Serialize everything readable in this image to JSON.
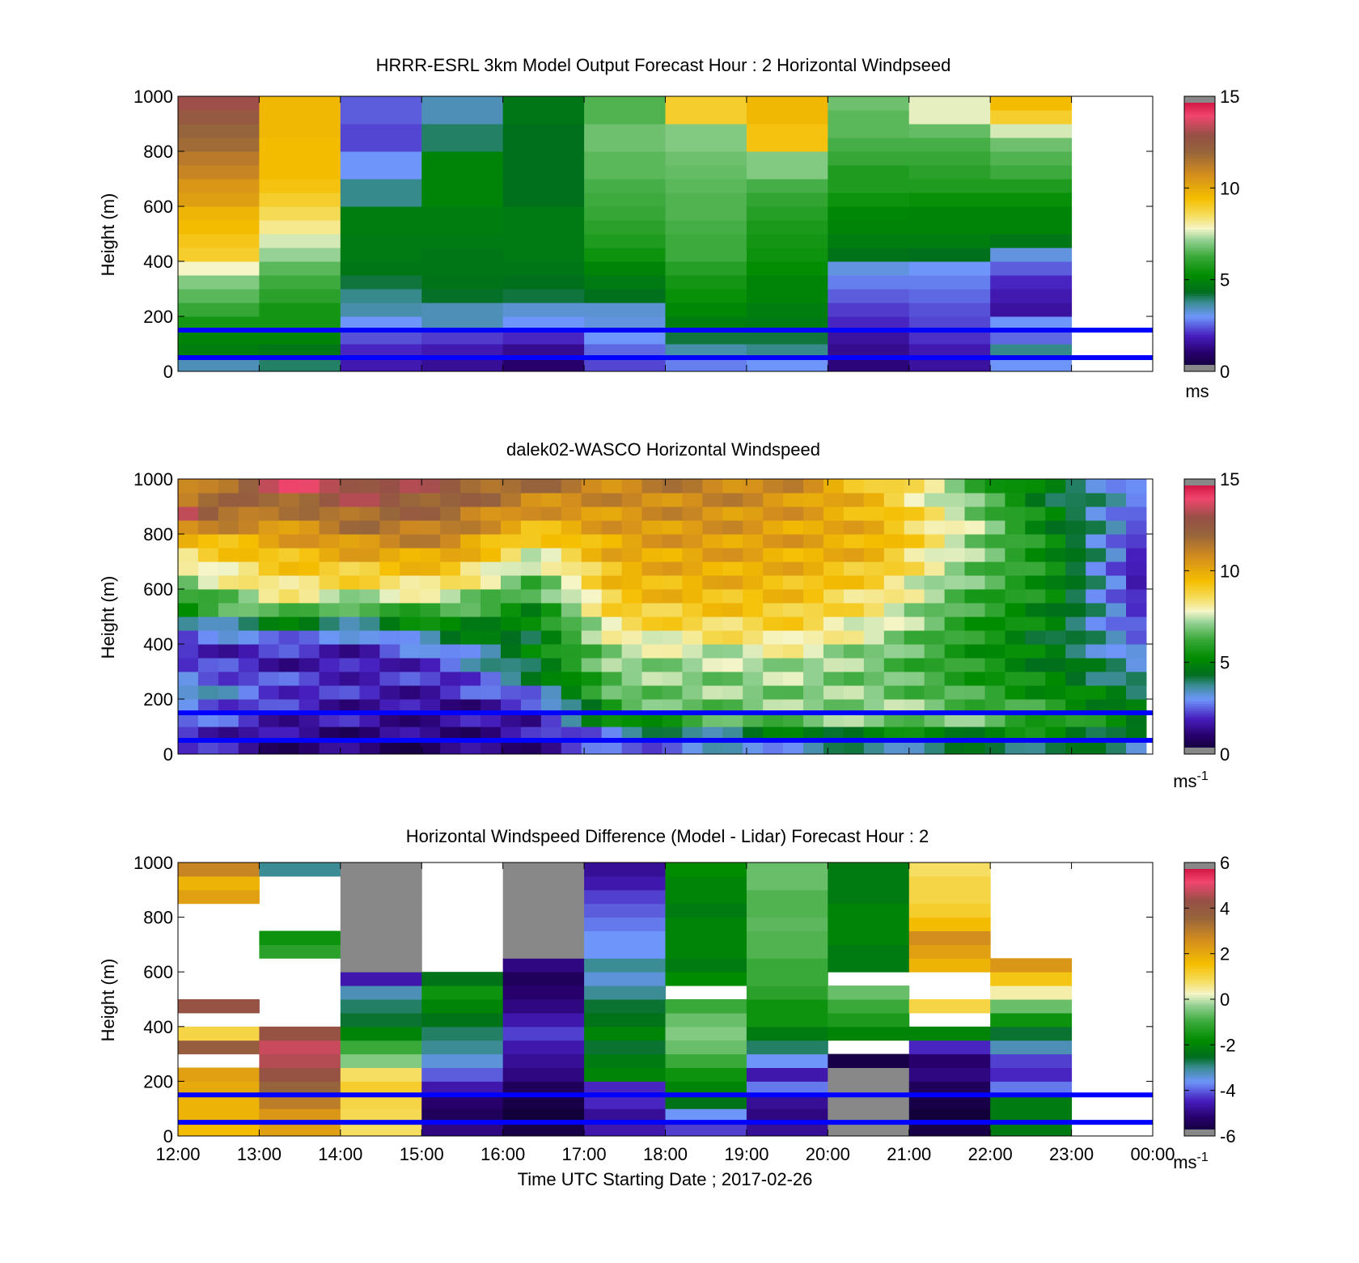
{
  "figure": {
    "xlabel": "Time UTC  Starting Date ; 2017-02-26",
    "time_ticks": [
      "12:00",
      "13:00",
      "14:00",
      "15:00",
      "16:00",
      "17:00",
      "18:00",
      "19:00",
      "20:00",
      "21:00",
      "22:00",
      "23:00",
      "00:00"
    ],
    "reference_heights_m": [
      50,
      150
    ],
    "reference_line_color": "#0000ff"
  },
  "chart_data": [
    {
      "type": "heatmap",
      "title": "HRRR-ESRL 3km Model Output   Forecast Hour : 2 Horizontal Windpseed",
      "ylabel": "Height (m)",
      "ylim": [
        0,
        1000
      ],
      "yticks": [
        0,
        200,
        400,
        600,
        800,
        1000
      ],
      "xticks": [
        "12:00",
        "13:00",
        "14:00",
        "15:00",
        "16:00",
        "17:00",
        "18:00",
        "19:00",
        "20:00",
        "21:00",
        "22:00",
        "23:00",
        "00:00"
      ],
      "colorbar": {
        "range": [
          0,
          15
        ],
        "ticks": [
          0,
          5,
          10,
          15
        ],
        "unit": "ms",
        "unit_sup": ""
      },
      "resolution": "hourly",
      "heights_m": [
        0,
        50,
        100,
        150,
        200,
        250,
        300,
        350,
        400,
        450,
        500,
        550,
        600,
        650,
        700,
        750,
        800,
        850,
        900,
        950
      ],
      "series": [
        {
          "time": "12:00",
          "values": [
            3.5,
            4.8,
            5.0,
            5.6,
            6.2,
            6.6,
            7.0,
            7.8,
            9.0,
            9.2,
            9.5,
            9.7,
            10.3,
            10.5,
            11.0,
            11.3,
            11.8,
            12.0,
            12.5,
            13.0
          ]
        },
        {
          "time": "13:00",
          "values": [
            4.0,
            4.6,
            5.0,
            5.6,
            5.6,
            6.0,
            6.3,
            6.6,
            7.2,
            7.6,
            8.2,
            8.6,
            9.0,
            9.3,
            9.5,
            9.5,
            9.5,
            9.6,
            9.6,
            9.6
          ]
        },
        {
          "time": "14:00",
          "values": [
            1.8,
            2.0,
            2.4,
            3.0,
            3.6,
            3.8,
            4.2,
            4.6,
            4.7,
            4.7,
            4.8,
            4.8,
            3.8,
            3.8,
            3.0,
            3.0,
            2.3,
            2.3,
            2.5,
            2.5
          ]
        },
        {
          "time": "15:00",
          "values": [
            1.5,
            1.8,
            2.2,
            3.5,
            3.5,
            4.3,
            4.5,
            4.6,
            4.6,
            4.7,
            4.8,
            4.8,
            5.0,
            5.0,
            5.0,
            5.0,
            4.0,
            4.0,
            3.5,
            3.5
          ]
        },
        {
          "time": "16:00",
          "values": [
            1.0,
            1.4,
            2.0,
            3.0,
            3.3,
            4.2,
            4.4,
            4.6,
            4.7,
            4.7,
            4.7,
            4.7,
            4.4,
            4.4,
            4.4,
            4.4,
            4.4,
            4.4,
            4.6,
            4.6
          ]
        },
        {
          "time": "17:00",
          "values": [
            2.3,
            2.6,
            3.0,
            3.2,
            3.3,
            4.4,
            4.7,
            5.0,
            5.5,
            5.8,
            6.0,
            6.2,
            6.3,
            6.4,
            6.6,
            6.6,
            6.8,
            6.8,
            6.5,
            6.5
          ]
        },
        {
          "time": "18:00",
          "values": [
            2.8,
            3.6,
            4.2,
            4.8,
            5.1,
            5.4,
            5.6,
            5.9,
            6.3,
            6.3,
            6.4,
            6.5,
            6.5,
            6.6,
            6.7,
            6.8,
            7.0,
            7.0,
            9.0,
            9.0
          ]
        },
        {
          "time": "19:00",
          "values": [
            3.0,
            3.8,
            4.2,
            4.7,
            4.8,
            5.0,
            5.0,
            5.3,
            5.5,
            5.6,
            5.7,
            5.9,
            6.1,
            6.4,
            7.0,
            7.0,
            9.3,
            9.3,
            9.6,
            9.6
          ]
        },
        {
          "time": "20:00",
          "values": [
            1.2,
            1.4,
            1.6,
            2.0,
            2.2,
            2.5,
            2.8,
            3.2,
            4.5,
            4.8,
            5.0,
            5.1,
            5.5,
            5.8,
            5.8,
            6.2,
            6.4,
            6.6,
            6.6,
            6.8
          ]
        },
        {
          "time": "21:00",
          "values": [
            1.6,
            1.8,
            2.1,
            2.3,
            2.4,
            2.6,
            2.8,
            3.0,
            4.4,
            4.8,
            5.0,
            5.0,
            5.4,
            5.8,
            6.0,
            6.2,
            6.4,
            6.7,
            7.7,
            7.7
          ]
        },
        {
          "time": "22:00",
          "values": [
            3.0,
            3.8,
            2.6,
            3.0,
            1.6,
            1.8,
            2.0,
            2.5,
            3.2,
            4.6,
            5.0,
            5.0,
            5.4,
            5.8,
            6.3,
            6.5,
            6.8,
            7.6,
            9.0,
            9.5
          ]
        }
      ]
    },
    {
      "type": "heatmap",
      "title": "dalek02-WASCO  Horizontal Windspeed",
      "ylabel": "Height (m)",
      "ylim": [
        0,
        1000
      ],
      "yticks": [
        0,
        200,
        400,
        600,
        800,
        1000
      ],
      "xticks": [],
      "colorbar": {
        "range": [
          0,
          15
        ],
        "ticks": [
          0,
          5,
          10,
          15
        ],
        "unit": "ms",
        "unit_sup": "-1"
      },
      "resolution": "profile",
      "heights_m": [
        25,
        75,
        125,
        175,
        225,
        275,
        325,
        375,
        425,
        475,
        525,
        575,
        625,
        675,
        725,
        775,
        825,
        875,
        925,
        975
      ],
      "profiles": [
        [
          2.0,
          2.2,
          2.6,
          3.0,
          3.4,
          3.0,
          2.2,
          2.0,
          2.4,
          3.5,
          5.5,
          6.0,
          7.0,
          7.8,
          8.5,
          9.5,
          11.0,
          13.0,
          11.5,
          10.5
        ],
        [
          1.2,
          1.4,
          1.8,
          2.0,
          2.4,
          2.2,
          1.8,
          2.0,
          3.0,
          4.6,
          7.0,
          8.0,
          8.6,
          9.0,
          9.5,
          10.0,
          10.5,
          11.0,
          12.0,
          13.5
        ],
        [
          1.0,
          1.2,
          1.6,
          1.6,
          1.8,
          2.0,
          1.6,
          1.8,
          2.6,
          4.0,
          6.0,
          7.5,
          8.6,
          9.2,
          10.0,
          10.8,
          11.5,
          12.0,
          12.8,
          13.2
        ],
        [
          1.0,
          1.2,
          1.4,
          1.4,
          1.8,
          2.0,
          2.4,
          3.0,
          4.2,
          5.4,
          6.5,
          7.6,
          8.6,
          9.4,
          10.2,
          11.0,
          11.4,
          11.8,
          12.2,
          12.4
        ],
        [
          1.4,
          1.6,
          1.8,
          2.0,
          3.0,
          4.0,
          4.6,
          4.8,
          4.6,
          4.8,
          5.2,
          6.0,
          6.4,
          7.0,
          7.8,
          8.6,
          9.6,
          10.4,
          11.0,
          11.6
        ],
        [
          2.6,
          3.4,
          5.4,
          6.4,
          6.8,
          7.0,
          7.2,
          7.4,
          8.0,
          8.6,
          9.0,
          9.4,
          9.6,
          9.8,
          10.0,
          10.2,
          10.4,
          10.6,
          10.8,
          11.0
        ],
        [
          3.0,
          4.0,
          6.2,
          6.8,
          7.0,
          7.0,
          7.2,
          7.6,
          8.2,
          8.8,
          9.2,
          9.6,
          9.8,
          10.0,
          10.2,
          10.4,
          10.6,
          10.8,
          11.0,
          11.2
        ],
        [
          3.4,
          4.6,
          6.8,
          7.0,
          7.0,
          7.2,
          7.4,
          7.8,
          8.4,
          8.8,
          9.2,
          9.4,
          9.6,
          9.8,
          10.0,
          10.2,
          10.2,
          10.4,
          10.6,
          10.8
        ],
        [
          3.8,
          5.0,
          7.0,
          7.2,
          7.0,
          6.8,
          6.8,
          7.0,
          7.4,
          7.8,
          8.2,
          8.4,
          8.8,
          9.2,
          9.6,
          9.8,
          9.8,
          9.6,
          9.4,
          9.2
        ],
        [
          4.0,
          5.0,
          6.8,
          6.6,
          6.2,
          6.0,
          5.8,
          5.8,
          5.8,
          6.0,
          6.2,
          6.4,
          6.8,
          7.0,
          7.2,
          7.4,
          7.6,
          7.4,
          7.0,
          6.8
        ],
        [
          4.4,
          5.2,
          6.0,
          5.8,
          5.4,
          5.0,
          4.8,
          4.6,
          4.6,
          4.8,
          5.0,
          5.2,
          5.4,
          5.4,
          5.4,
          5.2,
          5.0,
          4.8,
          4.6,
          4.4
        ],
        [
          3.6,
          4.2,
          4.8,
          4.6,
          4.2,
          3.8,
          3.4,
          3.0,
          2.6,
          2.4,
          2.2,
          2.0,
          1.8,
          1.8,
          2.0,
          2.2,
          2.4,
          2.6,
          2.8,
          3.0
        ]
      ]
    },
    {
      "type": "heatmap",
      "title": "Horizontal Windspeed Difference (Model - Lidar) Forecast Hour : 2",
      "ylabel": "Height (m)",
      "ylim": [
        0,
        1000
      ],
      "yticks": [
        0,
        200,
        400,
        600,
        800,
        1000
      ],
      "xticks": [
        "12:00",
        "13:00",
        "14:00",
        "15:00",
        "16:00",
        "17:00",
        "18:00",
        "19:00",
        "20:00",
        "21:00",
        "22:00",
        "23:00",
        "00:00"
      ],
      "colorbar": {
        "range": [
          -6,
          6
        ],
        "ticks": [
          -6,
          -4,
          -2,
          0,
          2,
          4,
          6
        ],
        "unit": "ms",
        "unit_sup": "-1"
      },
      "resolution": "hourly",
      "heights_m": [
        0,
        50,
        100,
        150,
        200,
        250,
        300,
        350,
        400,
        450,
        500,
        550,
        600,
        650,
        700,
        750,
        800,
        850,
        900,
        950
      ],
      "series": [
        {
          "time": "12:00",
          "values": [
            1.6,
            1.8,
            1.8,
            2.0,
            2.2,
            null,
            3.8,
            1.0,
            null,
            4.2,
            null,
            null,
            null,
            null,
            null,
            null,
            null,
            2.2,
            1.8,
            2.8
          ]
        },
        {
          "time": "13:00",
          "values": [
            2.2,
            2.4,
            3.0,
            3.6,
            4.2,
            4.6,
            4.8,
            4.2,
            null,
            null,
            null,
            null,
            null,
            -1.2,
            -1.6,
            null,
            null,
            null,
            null,
            -3.0
          ]
        },
        {
          "time": "14:00",
          "values": [
            0.8,
            0.9,
            1.0,
            1.2,
            0.8,
            -0.4,
            -1.0,
            -2.0,
            -2.6,
            -2.8,
            -3.2,
            -4.6,
            -6.4,
            -6.4,
            -6.4,
            -6.4,
            -6.4,
            -6.4,
            -6.4,
            -6.4
          ]
        },
        {
          "time": "15:00",
          "values": [
            -5.0,
            -5.4,
            -5.2,
            -4.6,
            -4.0,
            -3.4,
            -3.0,
            -2.8,
            -2.4,
            -2.0,
            -1.6,
            -2.4,
            null,
            null,
            null,
            null,
            null,
            null,
            null,
            null
          ]
        },
        {
          "time": "16:00",
          "values": [
            -5.6,
            -5.8,
            -5.6,
            -5.4,
            -5.0,
            -4.8,
            -4.6,
            -4.2,
            -4.6,
            -5.0,
            -5.2,
            -5.4,
            -5.0,
            -6.4,
            -6.4,
            -6.4,
            -6.4,
            -6.4,
            -6.4,
            -6.4
          ]
        },
        {
          "time": "17:00",
          "values": [
            -4.6,
            -4.8,
            -4.4,
            -4.4,
            -2.0,
            -2.2,
            -2.6,
            -2.0,
            -2.4,
            -2.6,
            -3.0,
            -3.4,
            -3.0,
            -3.6,
            -3.6,
            -3.8,
            -4.0,
            -4.2,
            -4.6,
            -4.8
          ]
        },
        {
          "time": "18:00",
          "values": [
            -4.2,
            -3.6,
            -2.4,
            -2.0,
            -1.6,
            -1.0,
            -0.6,
            -0.4,
            -0.6,
            -1.0,
            null,
            -1.8,
            -2.2,
            -2.0,
            -2.0,
            -2.0,
            -2.2,
            -2.0,
            -2.0,
            -1.8
          ]
        },
        {
          "time": "19:00",
          "values": [
            -4.8,
            -5.0,
            -4.8,
            -3.8,
            -4.6,
            -3.6,
            -2.8,
            -2.2,
            -1.6,
            -1.6,
            -1.2,
            -1.0,
            -1.0,
            -0.8,
            -0.8,
            -0.7,
            -0.8,
            -0.8,
            -0.6,
            -0.6
          ]
        },
        {
          "time": "20:00",
          "values": [
            -6.4,
            -6.4,
            -6.4,
            -6.4,
            -6.4,
            -5.6,
            null,
            -2.0,
            -1.4,
            -1.0,
            -0.6,
            null,
            -2.2,
            -2.2,
            -2.0,
            -2.0,
            -2.0,
            -2.2,
            -2.2,
            -2.2
          ]
        },
        {
          "time": "21:00",
          "values": [
            -5.6,
            -5.8,
            -5.6,
            -5.4,
            -5.0,
            -5.2,
            -4.4,
            -2.0,
            null,
            1.0,
            null,
            null,
            1.8,
            2.2,
            2.6,
            1.6,
            1.2,
            1.0,
            1.0,
            0.8
          ]
        },
        {
          "time": "22:00",
          "values": [
            -2.2,
            -2.2,
            -2.2,
            -3.8,
            -4.4,
            -4.2,
            -3.2,
            -2.6,
            -1.6,
            -0.6,
            0.4,
            1.4,
            2.4,
            null,
            null,
            null,
            null,
            null,
            null,
            null
          ]
        }
      ]
    }
  ]
}
